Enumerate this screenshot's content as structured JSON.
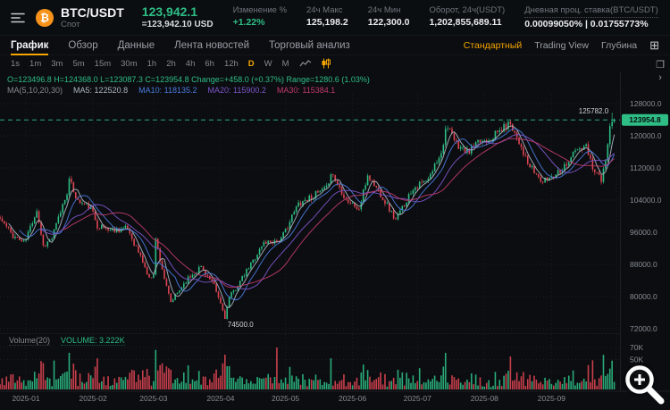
{
  "topbar": {
    "symbol": "BTC/USDT",
    "market": "Спот",
    "price": "123,942.1",
    "price_usd": "=123,942.10 USD",
    "stats": [
      {
        "label": "Изменение %",
        "value": "+1.22%",
        "green": true
      },
      {
        "label": "24ч Макс",
        "value": "125,198.2"
      },
      {
        "label": "24ч Мин",
        "value": "122,300.0"
      },
      {
        "label": "Оборот, 24ч(USDT)",
        "value": "1,202,855,689.11"
      },
      {
        "label": "Дневная проц. ставка(BTC/USDT)",
        "value": "0.00099050% | 0.01755773%",
        "dotted": true
      }
    ]
  },
  "tabs": {
    "items": [
      "График",
      "Обзор",
      "Данные",
      "Лента новостей",
      "Торговый анализ"
    ],
    "active": 0
  },
  "view_modes": {
    "items": [
      "Стандартный",
      "Trading View",
      "Глубина"
    ],
    "active": 0
  },
  "timeframes": {
    "items": [
      "1s",
      "1m",
      "3m",
      "5m",
      "15m",
      "30m",
      "1h",
      "2h",
      "4h",
      "6h",
      "12h",
      "D",
      "W",
      "M"
    ],
    "active": "D"
  },
  "legend": {
    "ohlc": "O=123496.8  H=124368.0  L=123087.3  C=123954.8  Change=+458.0 (+0.37%)  Range=1280.6 (1.03%)",
    "ma_label": "MA(5,10,20,30)",
    "ma_items": [
      {
        "name": "MA5: 122520.8",
        "color": "#aeb6c2"
      },
      {
        "name": "MA10: 118135.2",
        "color": "#4b7be0"
      },
      {
        "name": "MA20: 115900.2",
        "color": "#7e56cc"
      },
      {
        "name": "MA30: 115384.1",
        "color": "#c23b6d"
      }
    ]
  },
  "volume": {
    "label": "Volume(20)",
    "value": "VOLUME: 3.222K",
    "ticks": [
      {
        "v": 70000,
        "label": "70K"
      },
      {
        "v": 50000,
        "label": "50K"
      },
      {
        "v": 30000,
        "label": "30K"
      }
    ]
  },
  "chart_data": {
    "type": "candlestick",
    "symbol": "BTC/USDT",
    "interval": "D",
    "ylim": [
      72000,
      128000
    ],
    "price_ticks": [
      {
        "p": 128000,
        "label": "128000.0"
      },
      {
        "p": 120000,
        "label": "120000.0"
      },
      {
        "p": 112000,
        "label": "112000.0"
      },
      {
        "p": 104000,
        "label": "104000.0"
      },
      {
        "p": 96000,
        "label": "96000.0"
      },
      {
        "p": 88000,
        "label": "88000.0"
      },
      {
        "p": 80000,
        "label": "80000.0"
      },
      {
        "p": 72000,
        "label": "72000.0"
      }
    ],
    "month_ticks": [
      {
        "label": "2025-01",
        "day": 0
      },
      {
        "label": "2025-02",
        "day": 31
      },
      {
        "label": "2025-03",
        "day": 59
      },
      {
        "label": "2025-04",
        "day": 90
      },
      {
        "label": "2025-05",
        "day": 120
      },
      {
        "label": "2025-06",
        "day": 151
      },
      {
        "label": "2025-07",
        "day": 181
      },
      {
        "label": "2025-08",
        "day": 212
      },
      {
        "label": "2025-09",
        "day": 243
      },
      {
        "label": "",
        "day": 273
      }
    ],
    "price_path_anchors": [
      [
        -12,
        99400
      ],
      [
        -6,
        95200
      ],
      [
        -1,
        93400
      ],
      [
        0,
        94400
      ],
      [
        5,
        101600
      ],
      [
        8,
        92600
      ],
      [
        12,
        94500
      ],
      [
        19,
        106100
      ],
      [
        20,
        108900
      ],
      [
        24,
        103700
      ],
      [
        30,
        102100
      ],
      [
        33,
        97700
      ],
      [
        39,
        96600
      ],
      [
        47,
        96900
      ],
      [
        54,
        88700
      ],
      [
        57,
        84300
      ],
      [
        59,
        86000
      ],
      [
        60,
        94200
      ],
      [
        65,
        82100
      ],
      [
        67,
        78500
      ],
      [
        74,
        84000
      ],
      [
        81,
        87500
      ],
      [
        87,
        82500
      ],
      [
        90,
        78200
      ],
      [
        92,
        74900
      ],
      [
        94,
        79600
      ],
      [
        100,
        84500
      ],
      [
        110,
        93400
      ],
      [
        118,
        94200
      ],
      [
        126,
        103200
      ],
      [
        139,
        106800
      ],
      [
        141,
        111000
      ],
      [
        148,
        104200
      ],
      [
        154,
        101600
      ],
      [
        158,
        110200
      ],
      [
        164,
        105500
      ],
      [
        171,
        99000
      ],
      [
        179,
        107100
      ],
      [
        186,
        108900
      ],
      [
        193,
        117500
      ],
      [
        194,
        122700
      ],
      [
        199,
        118000
      ],
      [
        204,
        115800
      ],
      [
        210,
        118500
      ],
      [
        215,
        119600
      ],
      [
        224,
        123300
      ],
      [
        229,
        117400
      ],
      [
        232,
        112900
      ],
      [
        239,
        108400
      ],
      [
        245,
        110800
      ],
      [
        249,
        112500
      ],
      [
        254,
        116200
      ],
      [
        259,
        117100
      ],
      [
        262,
        112400
      ],
      [
        266,
        109200
      ],
      [
        268,
        113000
      ],
      [
        269,
        118600
      ],
      [
        270,
        120300
      ],
      [
        271,
        122400
      ],
      [
        272,
        123954.8
      ]
    ],
    "last_candle": {
      "open": 123496.8,
      "high": 124368.0,
      "low": 123087.3,
      "close": 123954.8
    },
    "annotations": {
      "high_label": "125782.0",
      "high_price": 125782.0,
      "low_label": "74500.0",
      "low_price": 74500.0,
      "low_day": 92,
      "current_price_label": "123954.8",
      "current_price": 123954.8
    },
    "ma_windows": [
      5,
      10,
      20,
      30
    ],
    "total_days": 285,
    "day_offset": 12,
    "seed": 11
  },
  "colors": {
    "up": "#2ebd85",
    "down": "#de4553",
    "accent": "#f7a600",
    "ma": [
      "#aeb6c2",
      "#4b7be0",
      "#7e56cc",
      "#c23b6d"
    ],
    "axis_text": "#878c94",
    "grid": "rgba(255,255,255,0.07)",
    "price_line": "#2ebd85",
    "badge_text": "#0b0e11"
  },
  "icons": {
    "menu": "menu",
    "grid_layout": "⊞",
    "screenshot": "❐",
    "chevron_right": "›",
    "coin": "₿"
  }
}
